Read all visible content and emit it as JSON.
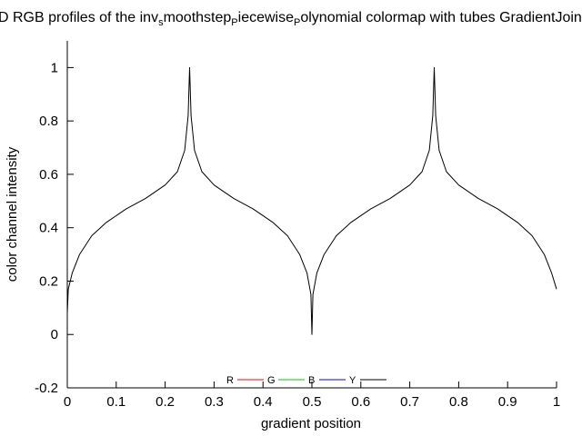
{
  "chart_data": {
    "type": "line",
    "title": {
      "before": "D RGB profiles of the inv",
      "sub1": "s",
      "middle": "moothstep",
      "sub2": "P",
      "middle2": "iecewise",
      "sub3": "P",
      "after": "olynomial colormap with tubes GradientJoin"
    },
    "xlabel": "gradient position",
    "ylabel": "color channel intensity",
    "xlim": [
      0,
      1
    ],
    "ylim": [
      -0.2,
      1.1
    ],
    "xticks": [
      0,
      0.1,
      0.2,
      0.3,
      0.4,
      0.5,
      0.6,
      0.7,
      0.8,
      0.9,
      1
    ],
    "xtick_labels": [
      "0",
      "0.1",
      "0.2",
      "0.3",
      "0.4",
      "0.5",
      "0.6",
      "0.7",
      "0.8",
      "0.9",
      "1"
    ],
    "yticks": [
      -0.2,
      0,
      0.2,
      0.4,
      0.6,
      0.8,
      1
    ],
    "ytick_labels": [
      "-0.2",
      "0",
      "0.2",
      "0.4",
      "0.6",
      "0.8",
      "1"
    ],
    "grid": false,
    "legend_position": "bottom-center",
    "series": [
      {
        "name": "R",
        "color": "#ff0000",
        "values": []
      },
      {
        "name": "G",
        "color": "#00cc00",
        "values": []
      },
      {
        "name": "B",
        "color": "#0000ff",
        "values": []
      },
      {
        "name": "Y",
        "color": "#000000",
        "points": [
          [
            0,
            0.08
          ],
          [
            0.002,
            0.17
          ],
          [
            0.01,
            0.23
          ],
          [
            0.025,
            0.3
          ],
          [
            0.05,
            0.37
          ],
          [
            0.08,
            0.42
          ],
          [
            0.12,
            0.47
          ],
          [
            0.16,
            0.51
          ],
          [
            0.2,
            0.56
          ],
          [
            0.225,
            0.61
          ],
          [
            0.24,
            0.69
          ],
          [
            0.247,
            0.82
          ],
          [
            0.25,
            1.0
          ],
          [
            0.253,
            0.82
          ],
          [
            0.26,
            0.69
          ],
          [
            0.275,
            0.61
          ],
          [
            0.3,
            0.56
          ],
          [
            0.34,
            0.51
          ],
          [
            0.38,
            0.47
          ],
          [
            0.42,
            0.42
          ],
          [
            0.45,
            0.37
          ],
          [
            0.475,
            0.3
          ],
          [
            0.49,
            0.23
          ],
          [
            0.498,
            0.15
          ],
          [
            0.5,
            0.0
          ],
          [
            0.502,
            0.15
          ],
          [
            0.51,
            0.23
          ],
          [
            0.525,
            0.3
          ],
          [
            0.55,
            0.37
          ],
          [
            0.58,
            0.42
          ],
          [
            0.62,
            0.47
          ],
          [
            0.66,
            0.51
          ],
          [
            0.7,
            0.56
          ],
          [
            0.725,
            0.61
          ],
          [
            0.74,
            0.69
          ],
          [
            0.747,
            0.82
          ],
          [
            0.75,
            1.0
          ],
          [
            0.753,
            0.82
          ],
          [
            0.76,
            0.69
          ],
          [
            0.775,
            0.61
          ],
          [
            0.8,
            0.56
          ],
          [
            0.84,
            0.51
          ],
          [
            0.88,
            0.47
          ],
          [
            0.92,
            0.42
          ],
          [
            0.95,
            0.37
          ],
          [
            0.975,
            0.3
          ],
          [
            0.99,
            0.23
          ],
          [
            1,
            0.17
          ]
        ]
      }
    ]
  }
}
